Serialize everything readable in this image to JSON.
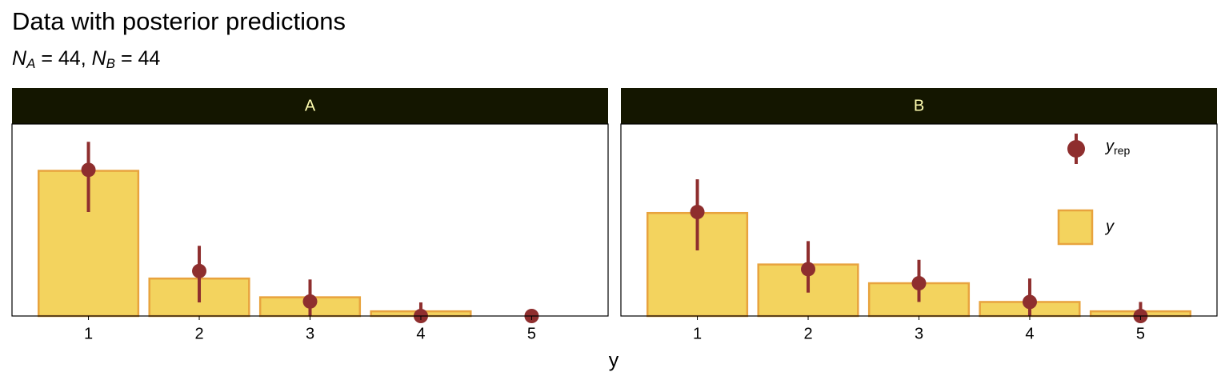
{
  "chart_data": {
    "type": "bar",
    "title": "Data with posterior predictions",
    "subtitle": [
      {
        "text": "N",
        "sub": "A",
        "rest": " = 44, "
      },
      {
        "text": "N",
        "sub": "B",
        "rest": " = 44"
      }
    ],
    "x_label": "y",
    "categories": [
      "1",
      "2",
      "3",
      "4",
      "5"
    ],
    "ylim": [
      0,
      41
    ],
    "series": [
      {
        "name": "y",
        "color": "#f3d35e",
        "edge": "#e8a33e"
      },
      {
        "name": "y",
        "sub": "rep",
        "color": "#8e2e2e"
      }
    ],
    "facets": [
      {
        "label": "A",
        "values": [
          31,
          8,
          4,
          1,
          0
        ],
        "yrep": [
          31.2,
          9.6,
          3.1,
          0,
          0
        ],
        "yrep_low": [
          22.2,
          2.9,
          0,
          0,
          0
        ],
        "yrep_high": [
          37.2,
          15,
          7.8,
          2.9,
          0
        ]
      },
      {
        "label": "B",
        "values": [
          22,
          11,
          7,
          3,
          1
        ],
        "yrep": [
          22.2,
          10,
          7,
          3,
          0
        ],
        "yrep_low": [
          14,
          5,
          3,
          0,
          0
        ],
        "yrep_high": [
          29.2,
          16,
          12,
          8,
          3
        ]
      }
    ]
  }
}
